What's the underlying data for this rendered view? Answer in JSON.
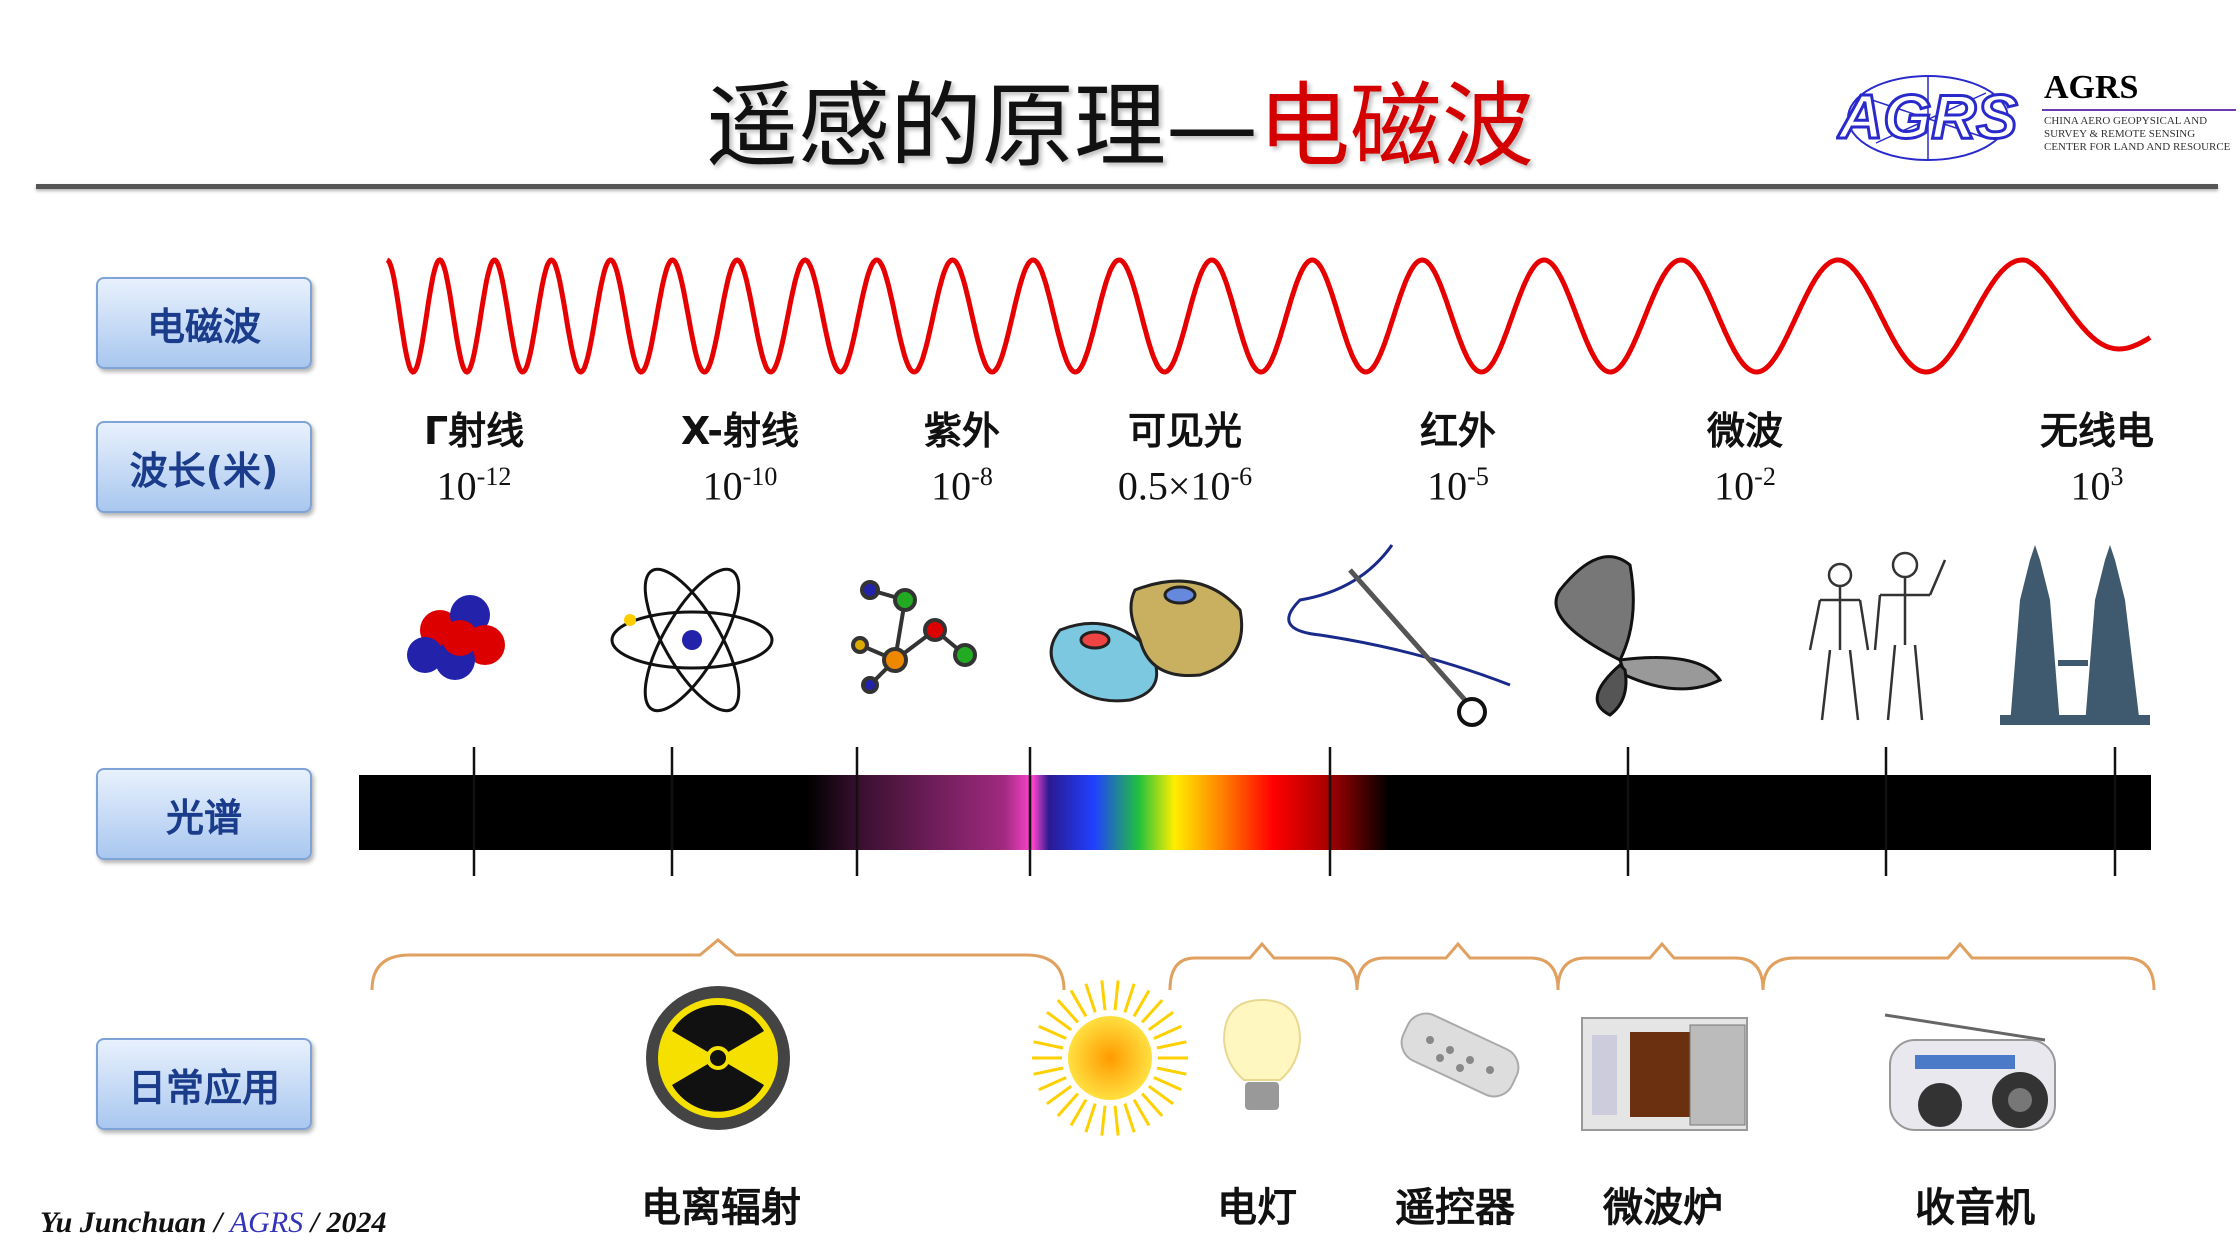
{
  "title": {
    "black": "遥感的原理—",
    "red": "电磁波"
  },
  "logo": {
    "mark": "AGRS",
    "name": "AGRS",
    "lines": [
      "CHINA AERO GEOPYSICAL AND",
      "SURVEY & REMOTE SENSING",
      "CENTER FOR LAND AND RESOURCE"
    ]
  },
  "row_labels": {
    "wave": "电磁波",
    "wavelength": "波长(米)",
    "spectrum": "光谱",
    "apps": "日常应用"
  },
  "bands": [
    {
      "name": "Γ射线",
      "base": "10",
      "exp": "-12",
      "icon": "atomic-nucleus-icon"
    },
    {
      "name": "X-射线",
      "base": "10",
      "exp": "-10",
      "icon": "atom-icon"
    },
    {
      "name": "紫外",
      "base": "10",
      "exp": "-8",
      "icon": "molecule-icon"
    },
    {
      "name": "可见光",
      "base": "0.5×10",
      "exp": "-6",
      "icon": "cell-icon"
    },
    {
      "name": "红外",
      "base": "10",
      "exp": "-5",
      "icon": "needle-icon"
    },
    {
      "name": "微波",
      "base": "10",
      "exp": "-2",
      "icon": "butterfly-icon"
    },
    {
      "name": "无线电",
      "base": "10",
      "exp": "3",
      "icon": "towers-icon"
    }
  ],
  "applications": [
    "电离辐射",
    "电灯",
    "遥控器",
    "微波炉",
    "收音机"
  ],
  "footer": {
    "author": "Yu Junchuan / ",
    "org": "AGRS",
    "year": " / 2024"
  },
  "colors": {
    "wave": "#e60000",
    "label_text": "#1a3c8a",
    "title_red": "#d40000"
  }
}
